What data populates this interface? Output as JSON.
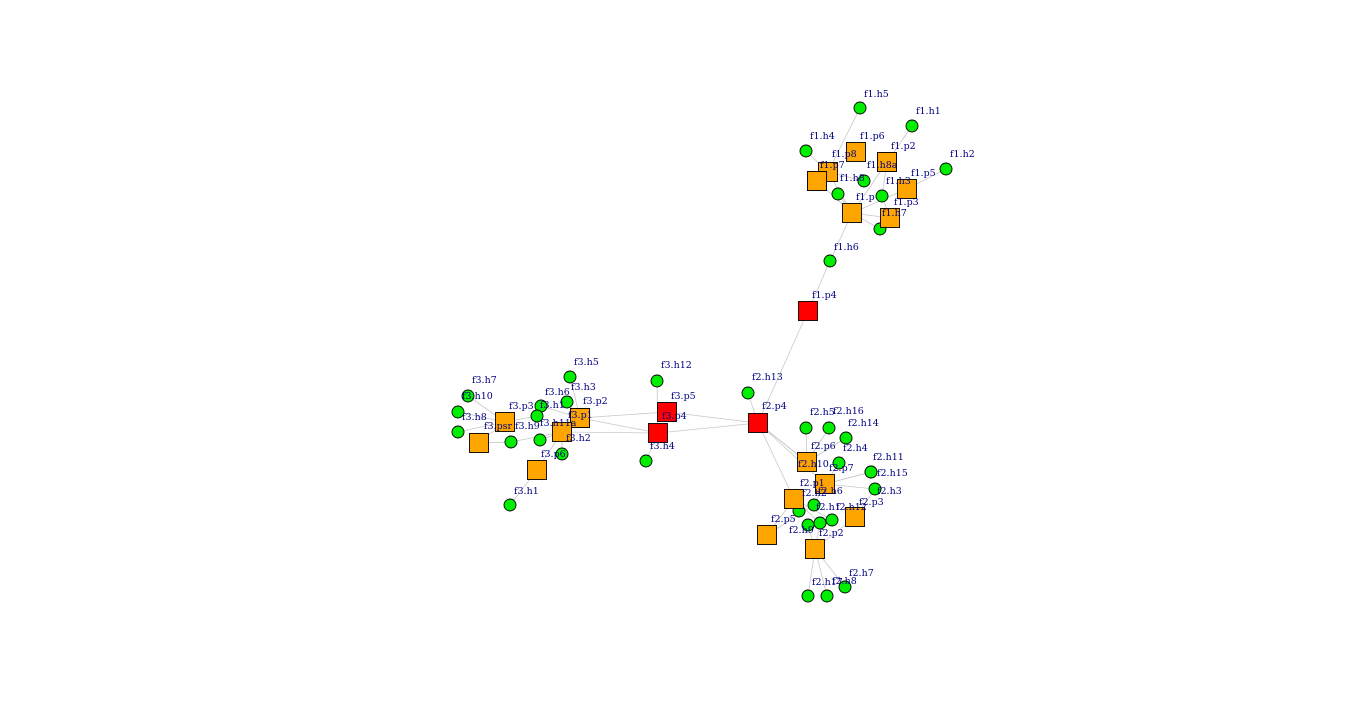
{
  "colors": {
    "bridge": "#ff0000",
    "person": "#ffa500",
    "household": "#00ee00",
    "edge": "#c8c8c8",
    "label": "#000080"
  },
  "nodes": [
    {
      "id": "f1.h5",
      "shape": "circle",
      "group": "household"
    },
    {
      "id": "f1.h1",
      "shape": "circle",
      "group": "household"
    },
    {
      "id": "f1.h4",
      "shape": "circle",
      "group": "household"
    },
    {
      "id": "f1.p6",
      "shape": "square",
      "group": "person"
    },
    {
      "id": "f1.p2",
      "shape": "square",
      "group": "person"
    },
    {
      "id": "f1.h2",
      "shape": "circle",
      "group": "household"
    },
    {
      "id": "f1.p8",
      "shape": "square",
      "group": "person"
    },
    {
      "id": "f1.p7",
      "shape": "square",
      "group": "person"
    },
    {
      "id": "f1.h8a",
      "shape": "square",
      "group": "person"
    },
    {
      "id": "f1.h8b",
      "shape": "circle",
      "group": "household"
    },
    {
      "id": "f1.h3",
      "shape": "circle",
      "group": "household"
    },
    {
      "id": "f1.p5",
      "shape": "square",
      "group": "person"
    },
    {
      "id": "f1.p1",
      "shape": "square",
      "group": "person"
    },
    {
      "id": "f1.hx",
      "shape": "circle",
      "group": "household"
    },
    {
      "id": "f1.p3",
      "shape": "square",
      "group": "person"
    },
    {
      "id": "f1.h7",
      "shape": "circle",
      "group": "household"
    },
    {
      "id": "f1.p9",
      "shape": "square",
      "group": "person"
    },
    {
      "id": "f1.h6",
      "shape": "circle",
      "group": "household"
    },
    {
      "id": "f1.p4",
      "shape": "square",
      "group": "bridge"
    },
    {
      "id": "f2.h13",
      "shape": "circle",
      "group": "household"
    },
    {
      "id": "f2.p4",
      "shape": "square",
      "group": "bridge"
    },
    {
      "id": "f2.h5",
      "shape": "circle",
      "group": "household"
    },
    {
      "id": "f2.h16",
      "shape": "circle",
      "group": "household"
    },
    {
      "id": "f2.h14",
      "shape": "circle",
      "group": "household"
    },
    {
      "id": "f2.p6",
      "shape": "square",
      "group": "person"
    },
    {
      "id": "f2.h4",
      "shape": "circle",
      "group": "household"
    },
    {
      "id": "f2.h10",
      "shape": "circle",
      "group": "household"
    },
    {
      "id": "f2.p7",
      "shape": "square",
      "group": "person"
    },
    {
      "id": "f2.h11",
      "shape": "circle",
      "group": "household"
    },
    {
      "id": "f2.h15",
      "shape": "circle",
      "group": "household"
    },
    {
      "id": "f2.p1",
      "shape": "square",
      "group": "person"
    },
    {
      "id": "f2.h6",
      "shape": "circle",
      "group": "household"
    },
    {
      "id": "f2.h3",
      "shape": "circle",
      "group": "household"
    },
    {
      "id": "f2.p3",
      "shape": "square",
      "group": "person"
    },
    {
      "id": "f2.h12",
      "shape": "circle",
      "group": "household"
    },
    {
      "id": "f2.h1",
      "shape": "circle",
      "group": "household"
    },
    {
      "id": "f2.h2",
      "shape": "circle",
      "group": "household"
    },
    {
      "id": "f2.p5",
      "shape": "square",
      "group": "person"
    },
    {
      "id": "f2.h9",
      "shape": "circle",
      "group": "household"
    },
    {
      "id": "f2.p2",
      "shape": "square",
      "group": "person"
    },
    {
      "id": "f2.h17",
      "shape": "circle",
      "group": "household"
    },
    {
      "id": "f2.h8",
      "shape": "circle",
      "group": "household"
    },
    {
      "id": "f2.h7",
      "shape": "circle",
      "group": "household"
    },
    {
      "id": "f3.h5",
      "shape": "circle",
      "group": "household"
    },
    {
      "id": "f3.h12",
      "shape": "circle",
      "group": "household"
    },
    {
      "id": "f3.h7",
      "shape": "circle",
      "group": "household"
    },
    {
      "id": "f3.h3",
      "shape": "circle",
      "group": "household"
    },
    {
      "id": "f3.p5",
      "shape": "square",
      "group": "bridge"
    },
    {
      "id": "f3.h10",
      "shape": "circle",
      "group": "household"
    },
    {
      "id": "f3.h6",
      "shape": "circle",
      "group": "household"
    },
    {
      "id": "f3.p2",
      "shape": "square",
      "group": "person"
    },
    {
      "id": "f3.p3",
      "shape": "square",
      "group": "person"
    },
    {
      "id": "f3.h1b",
      "shape": "circle",
      "group": "household"
    },
    {
      "id": "f3.p1",
      "shape": "square",
      "group": "person"
    },
    {
      "id": "f3.h8",
      "shape": "circle",
      "group": "household"
    },
    {
      "id": "f3.p4",
      "shape": "square",
      "group": "bridge"
    },
    {
      "id": "f3.psr",
      "shape": "square",
      "group": "person"
    },
    {
      "id": "f3.h9",
      "shape": "circle",
      "group": "household"
    },
    {
      "id": "f3.h11a",
      "shape": "square",
      "group": "person"
    },
    {
      "id": "f3.h4",
      "shape": "circle",
      "group": "household"
    },
    {
      "id": "f3.h2",
      "shape": "circle",
      "group": "household"
    },
    {
      "id": "f3.hx",
      "shape": "circle",
      "group": "household"
    },
    {
      "id": "f3.p6",
      "shape": "square",
      "group": "person"
    },
    {
      "id": "f3.h1",
      "shape": "circle",
      "group": "household"
    }
  ],
  "labels": [
    {
      "node": "f1.h5",
      "text": "f1.h5"
    },
    {
      "node": "f1.h1",
      "text": "f1.h1"
    },
    {
      "node": "f1.h4",
      "text": "f1.h4"
    },
    {
      "node": "f1.p6",
      "text": "f1.p6"
    },
    {
      "node": "f1.p2",
      "text": "f1.p2"
    },
    {
      "node": "f1.h2",
      "text": "f1.h2"
    },
    {
      "node": "f1.p8",
      "text": "f1.p8"
    },
    {
      "node": "f1.p7",
      "text": "f1.p7"
    },
    {
      "node": "f1.h8a",
      "text": "f1.h8a"
    },
    {
      "node": "f1.h8b",
      "text": "f1.h8"
    },
    {
      "node": "f1.h3",
      "text": "f1.h3"
    },
    {
      "node": "f1.p5",
      "text": "f1.p5"
    },
    {
      "node": "f1.hx",
      "text": "f1.p"
    },
    {
      "node": "f1.p3",
      "text": "f1.p3"
    },
    {
      "node": "f1.h7",
      "text": "f1.h7"
    },
    {
      "node": "f1.h6",
      "text": "f1.h6"
    },
    {
      "node": "f1.p4",
      "text": "f1.p4"
    },
    {
      "node": "f2.h13",
      "text": "f2.h13"
    },
    {
      "node": "f2.p4",
      "text": "f2.p4"
    },
    {
      "node": "f2.h5",
      "text": "f2.h5"
    },
    {
      "node": "f2.h16",
      "text": "f2.h16"
    },
    {
      "node": "f2.h14",
      "text": "f2.h14"
    },
    {
      "node": "f2.p6",
      "text": "f2.p6"
    },
    {
      "node": "f2.h4",
      "text": "f2.h4"
    },
    {
      "node": "f2.h10",
      "text": "f2.h10"
    },
    {
      "node": "f2.p7",
      "text": "f2.p7"
    },
    {
      "node": "f2.h11",
      "text": "f2.h11"
    },
    {
      "node": "f2.h15",
      "text": "f2.h15"
    },
    {
      "node": "f2.p1",
      "text": "f2.p1"
    },
    {
      "node": "f2.h6",
      "text": "f2.h6"
    },
    {
      "node": "f2.h3",
      "text": "f2.h3"
    },
    {
      "node": "f2.p3",
      "text": "f2.p3"
    },
    {
      "node": "f2.h12",
      "text": "f2.h12"
    },
    {
      "node": "f2.h1",
      "text": "f2.h1"
    },
    {
      "node": "f2.h2",
      "text": "f2.h2"
    },
    {
      "node": "f2.p5",
      "text": "f2.p5"
    },
    {
      "node": "f2.h9",
      "text": "f2.h9"
    },
    {
      "node": "f2.p2",
      "text": "f2.p2"
    },
    {
      "node": "f2.h17",
      "text": "f2.h17"
    },
    {
      "node": "f2.h8",
      "text": "f2.h8"
    },
    {
      "node": "f2.h7",
      "text": "f2.h7"
    },
    {
      "node": "f3.h5",
      "text": "f3.h5"
    },
    {
      "node": "f3.h12",
      "text": "f3.h12"
    },
    {
      "node": "f3.h7",
      "text": "f3.h7"
    },
    {
      "node": "f3.h3",
      "text": "f3.h3"
    },
    {
      "node": "f3.p5",
      "text": "f3.p5"
    },
    {
      "node": "f3.h10",
      "text": "f3.h10"
    },
    {
      "node": "f3.h6",
      "text": "f3.h6"
    },
    {
      "node": "f3.p2",
      "text": "f3.p2"
    },
    {
      "node": "f3.p3",
      "text": "f3.p3"
    },
    {
      "node": "f3.h1b",
      "text": "f3.h1"
    },
    {
      "node": "f3.p1",
      "text": "f3.p1"
    },
    {
      "node": "f3.h8",
      "text": "f3.h8"
    },
    {
      "node": "f3.p4",
      "text": "f3.p4"
    },
    {
      "node": "f3.psr",
      "text": "f3.psr"
    },
    {
      "node": "f3.h9",
      "text": "f3.h9"
    },
    {
      "node": "f3.h11a",
      "text": "f3.h11a"
    },
    {
      "node": "f3.h4",
      "text": "f3.h4"
    },
    {
      "node": "f3.h2",
      "text": "f3.h2"
    },
    {
      "node": "f3.p6",
      "text": "f3.p6"
    },
    {
      "node": "f3.h1",
      "text": "f3.h1"
    }
  ],
  "edges": [
    [
      "f1.p4",
      "f1.h6"
    ],
    [
      "f1.h6",
      "f1.p1"
    ],
    [
      "f1.p4",
      "f2.p4"
    ],
    [
      "f1.p1",
      "f1.p9"
    ],
    [
      "f1.p1",
      "f1.p7"
    ],
    [
      "f1.p1",
      "f1.p8"
    ],
    [
      "f1.p1",
      "f1.h8a"
    ],
    [
      "f1.p1",
      "f1.p3"
    ],
    [
      "f1.p1",
      "f1.h7"
    ],
    [
      "f1.p1",
      "f1.hx"
    ],
    [
      "f1.p1",
      "f1.p5"
    ],
    [
      "f1.p8",
      "f1.h5"
    ],
    [
      "f1.p8",
      "f1.h4"
    ],
    [
      "f1.p8",
      "f1.h8b"
    ],
    [
      "f1.h8a",
      "f1.h1"
    ],
    [
      "f1.p5",
      "f1.h2"
    ],
    [
      "f1.p3",
      "f1.h3"
    ],
    [
      "f1.p7",
      "f1.p9"
    ],
    [
      "f1.h8a",
      "f1.h3"
    ],
    [
      "f2.p4",
      "f3.p4"
    ],
    [
      "f2.p4",
      "f3.p5"
    ],
    [
      "f2.p4",
      "f2.h13"
    ],
    [
      "f2.p4",
      "f2.p6"
    ],
    [
      "f2.p4",
      "f2.p1"
    ],
    [
      "f2.p4",
      "f2.p7"
    ],
    [
      "f2.p4",
      "f2.h10"
    ],
    [
      "f2.p6",
      "f2.h5"
    ],
    [
      "f2.p6",
      "f2.h16"
    ],
    [
      "f2.p6",
      "f2.h14"
    ],
    [
      "f2.p7",
      "f2.h4"
    ],
    [
      "f2.p7",
      "f2.h11"
    ],
    [
      "f2.p7",
      "f2.h15"
    ],
    [
      "f2.p7",
      "f2.h3"
    ],
    [
      "f2.p3",
      "f2.h3"
    ],
    [
      "f2.p1",
      "f2.p5"
    ],
    [
      "f2.p1",
      "f2.h12"
    ],
    [
      "f2.p1",
      "f2.h1"
    ],
    [
      "f2.p1",
      "f2.h2"
    ],
    [
      "f2.p2",
      "f2.h17"
    ],
    [
      "f2.p2",
      "f2.h8"
    ],
    [
      "f2.p2",
      "f2.h7"
    ],
    [
      "f2.p2",
      "f2.h9"
    ],
    [
      "f2.p2",
      "f2.p3"
    ],
    [
      "f2.p2",
      "f2.h1"
    ],
    [
      "f2.p5",
      "f2.h6"
    ],
    [
      "f2.p7",
      "f2.h6"
    ],
    [
      "f3.p4",
      "f3.h12"
    ],
    [
      "f3.p4",
      "f3.h4"
    ],
    [
      "f3.p4",
      "f3.p1"
    ],
    [
      "f3.p5",
      "f3.p1"
    ],
    [
      "f3.p4",
      "f3.h11a"
    ],
    [
      "f3.p1",
      "f3.h5"
    ],
    [
      "f3.p1",
      "f3.h3"
    ],
    [
      "f3.p1",
      "f3.h6"
    ],
    [
      "f3.p3",
      "f3.h7"
    ],
    [
      "f3.p3",
      "f3.h10"
    ],
    [
      "f3.p3",
      "f3.h8"
    ],
    [
      "f3.p3",
      "f3.h1b"
    ],
    [
      "f3.psr",
      "f3.h9"
    ],
    [
      "f3.psr",
      "f3.p3"
    ],
    [
      "f3.h11a",
      "f3.h2"
    ],
    [
      "f3.h11a",
      "f3.p6"
    ],
    [
      "f3.p6",
      "f3.h1"
    ],
    [
      "f3.p2",
      "f3.p1"
    ],
    [
      "f3.h11a",
      "f3.hx"
    ],
    [
      "f3.h11a",
      "f3.h9"
    ]
  ]
}
